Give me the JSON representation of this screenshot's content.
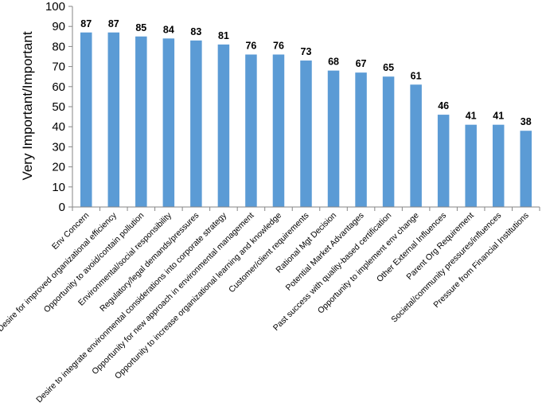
{
  "chart_data": {
    "type": "bar",
    "title": "",
    "xlabel": "",
    "ylabel": "Very Important/Important",
    "ylim": [
      0,
      100
    ],
    "yticks": [
      0,
      10,
      20,
      30,
      40,
      50,
      60,
      70,
      80,
      90,
      100
    ],
    "grid": false,
    "legend": "none",
    "bar_color": "#5b9bd5",
    "categories": [
      "Env Concern",
      "Desire for improved organizational efficiency",
      "Opportunity to avoid/contain pollution",
      "Environmental/social responsibility",
      "Regulatory/legal demands/pressures",
      "Desire to integrate environmental considerations into corporate strategy",
      "Opportunity for new approach in environmental management",
      "Opportunity to increase organizational learning and knowledge",
      "Customer/client requirements",
      "Rational Mgt Decision",
      "Potential Market Advantages",
      "Past success with quality-based certification",
      "Opportunity to implement env change",
      "Other External Influences",
      "Parent Org Requirement",
      "Societal/community pressures/influences",
      "Pressure from Financial Institutions"
    ],
    "values": [
      87,
      87,
      85,
      84,
      83,
      81,
      76,
      76,
      73,
      68,
      67,
      65,
      61,
      46,
      41,
      41,
      38
    ],
    "data_labels": [
      "87",
      "87",
      "85",
      "84",
      "83",
      "81",
      "76",
      "76",
      "73",
      "68",
      "67",
      "65",
      "61",
      "46",
      "41",
      "41",
      "38"
    ]
  }
}
